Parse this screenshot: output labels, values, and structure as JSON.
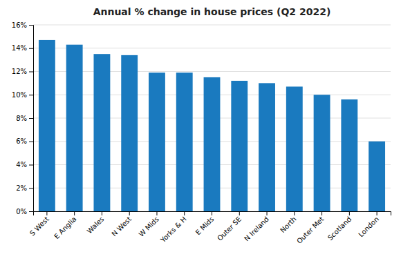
{
  "chart_data": {
    "type": "bar",
    "title": "Annual % change in house prices (Q2 2022)",
    "categories": [
      "S West",
      "E Anglia",
      "Wales",
      "N West",
      "W Mids",
      "Yorks & H",
      "E Mids",
      "Outer SE",
      "N Ireland",
      "North",
      "Outer Met",
      "Scotland",
      "London"
    ],
    "values": [
      14.7,
      14.3,
      13.5,
      13.4,
      11.9,
      11.9,
      11.5,
      11.2,
      11.0,
      10.7,
      10.0,
      9.6,
      6.0
    ],
    "color": "#1a7abf",
    "ylim": [
      0,
      16
    ],
    "yticks": [
      {
        "value": 0,
        "label": "0%"
      },
      {
        "value": 2,
        "label": "2%"
      },
      {
        "value": 4,
        "label": "4%"
      },
      {
        "value": 6,
        "label": "6%"
      },
      {
        "value": 8,
        "label": "8%"
      },
      {
        "value": 10,
        "label": "10%"
      },
      {
        "value": 12,
        "label": "12%"
      },
      {
        "value": 14,
        "label": "14%"
      },
      {
        "value": 16,
        "label": "16%"
      }
    ],
    "grid": true
  }
}
